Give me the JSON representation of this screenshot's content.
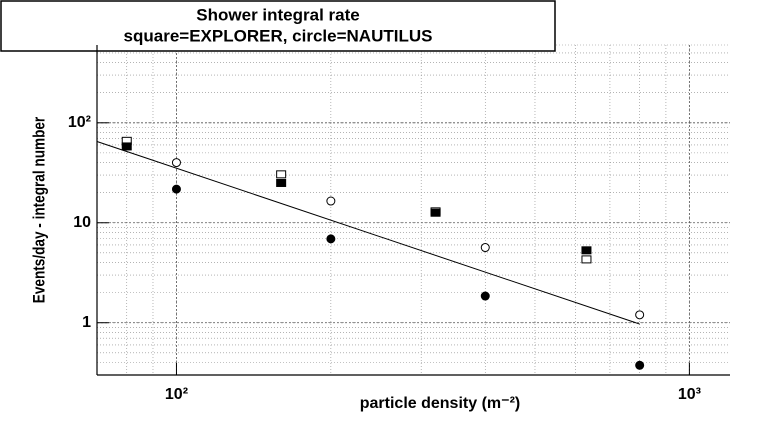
{
  "chart_data": {
    "type": "scatter",
    "title": "Shower integral rate",
    "subtitle": "square=EXPLORER, circle=NAUTILUS",
    "x_label": "particle density (m⁻²)",
    "y_label": "Events/day - integral number",
    "x_log": true,
    "y_log": true,
    "grid": true,
    "xlim": [
      70,
      1200
    ],
    "ylim": [
      0.3,
      600
    ],
    "xticks": [
      {
        "value": 100,
        "label": "10²"
      },
      {
        "value": 1000,
        "label": "10³"
      }
    ],
    "yticks": [
      1,
      10,
      {
        "value": 100,
        "label": "10²"
      }
    ],
    "series": [
      {
        "marker": "square",
        "filled": false,
        "color": "#000000",
        "x": [
          80,
          160,
          320,
          630
        ],
        "values": [
          66,
          30.5,
          13,
          4.3
        ]
      },
      {
        "marker": "square",
        "filled": true,
        "color": "#000000",
        "x": [
          80,
          160,
          320,
          630
        ],
        "values": [
          58,
          25,
          12.6,
          5.3
        ]
      },
      {
        "marker": "circle",
        "filled": false,
        "color": "#000000",
        "x": [
          100,
          200,
          400,
          800
        ],
        "values": [
          40,
          16.5,
          5.65,
          1.2
        ]
      },
      {
        "marker": "circle",
        "filled": true,
        "color": "#000000",
        "x": [
          100,
          200,
          400,
          800
        ],
        "values": [
          21.7,
          6.9,
          1.85,
          0.375
        ]
      },
      {
        "marker": "line",
        "color": "#000000",
        "x": [
          70,
          800
        ],
        "values": [
          65,
          0.97
        ]
      }
    ]
  }
}
